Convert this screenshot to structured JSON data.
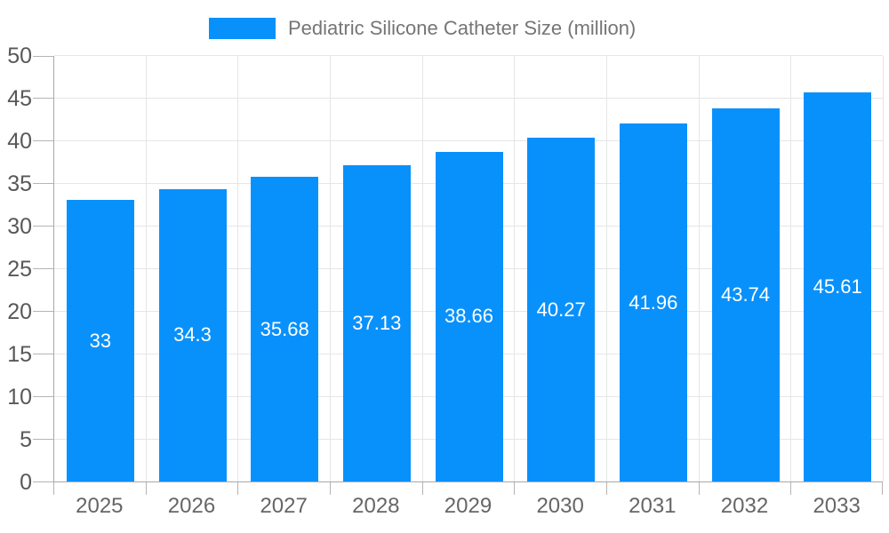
{
  "legend": {
    "label": "Pediatric Silicone Catheter Size (million)"
  },
  "chart_data": {
    "type": "bar",
    "title": "Pediatric Silicone Catheter Size (million)",
    "categories": [
      "2025",
      "2026",
      "2027",
      "2028",
      "2029",
      "2030",
      "2031",
      "2032",
      "2033"
    ],
    "values": [
      33,
      34.3,
      35.68,
      37.13,
      38.66,
      40.27,
      41.96,
      43.74,
      45.61
    ],
    "value_labels": [
      "33",
      "34.3",
      "35.68",
      "37.13",
      "38.66",
      "40.27",
      "41.96",
      "43.74",
      "45.61"
    ],
    "xlabel": "",
    "ylabel": "",
    "ylim": [
      0,
      50
    ],
    "y_ticks": [
      0,
      5,
      10,
      15,
      20,
      25,
      30,
      35,
      40,
      45,
      50
    ],
    "grid": true,
    "legend_position": "top",
    "bar_color": "#0991fb",
    "value_label_color": "#ffffff"
  },
  "colors": {
    "bar": "#0991fb",
    "grid": "#e6e6e6",
    "axis": "#a9a9a9",
    "tick": "#b5b5b5",
    "y_label": "#58585a",
    "x_label": "#666666",
    "legend_text": "#757575",
    "value_label": "#ffffff",
    "background": "#ffffff"
  }
}
